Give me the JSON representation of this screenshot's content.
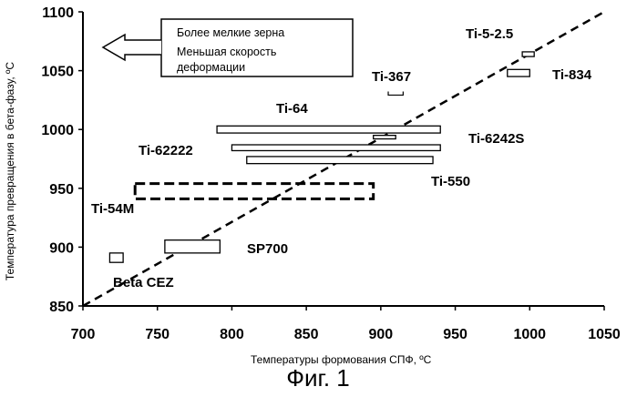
{
  "chart_data": {
    "type": "range-bars",
    "xlabel": "Температуры формования СПФ, ºC",
    "ylabel": "Температура превращения в бета-фазу, ºC",
    "xlim": [
      700,
      1050
    ],
    "ylim": [
      850,
      1100
    ],
    "x_ticks": [
      "700",
      "750",
      "800",
      "850",
      "900",
      "950",
      "1000",
      "1050"
    ],
    "y_ticks": [
      "850",
      "900",
      "950",
      "1000",
      "1050",
      "1100"
    ],
    "grid": false,
    "diagonal_line": {
      "style": "dashed",
      "from": [
        700,
        850
      ],
      "to": [
        1050,
        1100
      ]
    },
    "legend": {
      "lines": [
        "Более мелкие зерна",
        "Меньшая скорость",
        "деформации"
      ],
      "arrow": "left"
    },
    "alloys": [
      {
        "name": "Ti-5-2.5",
        "x": [
          995,
          1003
        ],
        "y": [
          1062,
          1066
        ],
        "style": "solid"
      },
      {
        "name": "Ti-834",
        "x": [
          985,
          1000
        ],
        "y": [
          1045,
          1051
        ],
        "style": "solid"
      },
      {
        "name": "Ti-367",
        "x": [
          905,
          915
        ],
        "y": [
          1028,
          1030
        ],
        "style": "bracket"
      },
      {
        "name": "Ti-64",
        "x": [
          790,
          940
        ],
        "y": [
          997,
          1003
        ],
        "style": "solid"
      },
      {
        "name": "Ti-6242S",
        "x": [
          895,
          910
        ],
        "y": [
          992,
          995
        ],
        "style": "solid"
      },
      {
        "name": "Ti-62222",
        "x": [
          800,
          940
        ],
        "y": [
          982,
          987
        ],
        "style": "solid"
      },
      {
        "name": "Ti-550",
        "x": [
          810,
          935
        ],
        "y": [
          971,
          977
        ],
        "style": "solid"
      },
      {
        "name": "Ti-54M",
        "x": [
          735,
          895
        ],
        "y": [
          941,
          954
        ],
        "style": "dashed"
      },
      {
        "name": "SP700",
        "x": [
          755,
          792
        ],
        "y": [
          895,
          906
        ],
        "style": "solid"
      },
      {
        "name": "Beta CEZ",
        "x": [
          718,
          727
        ],
        "y": [
          887,
          895
        ],
        "style": "solid"
      }
    ]
  },
  "caption": "Фиг. 1"
}
